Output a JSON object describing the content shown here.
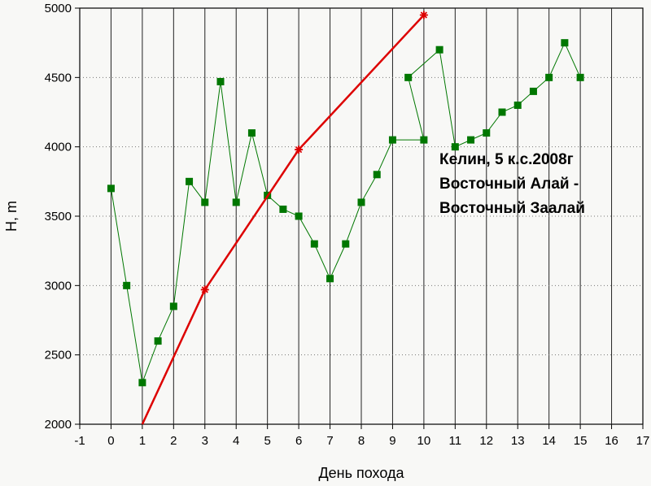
{
  "chart_data": {
    "type": "line",
    "xlabel": "День похода",
    "ylabel": "H, m",
    "xlim": [
      -1,
      17
    ],
    "ylim": [
      2000,
      5000
    ],
    "x_ticks": [
      -1,
      0,
      1,
      2,
      3,
      4,
      5,
      6,
      7,
      8,
      9,
      10,
      11,
      12,
      13,
      14,
      15,
      16,
      17
    ],
    "y_ticks": [
      2000,
      2500,
      3000,
      3500,
      4000,
      4500,
      5000
    ],
    "grid": {
      "vertical": "solid lines at each integer day",
      "horizontal": "dotted lines at each 500 m"
    },
    "annotation_lines": [
      "Келин, 5 к.с.2008г",
      "Восточный Алай -",
      "Восточный Заалай"
    ],
    "series": [
      {
        "color": "#007700",
        "marker": "square",
        "x": [
          0,
          0.5,
          1,
          1.5,
          2,
          2.5,
          3,
          3.5,
          4,
          4.5,
          5,
          5.5,
          6,
          6.5,
          7,
          7.5,
          8,
          8.5,
          9,
          10,
          9.5,
          10.5,
          11,
          11.5,
          12,
          12.5,
          13,
          13.5,
          14,
          14.5,
          15
        ],
        "y": [
          3700,
          3000,
          2300,
          2600,
          2850,
          3750,
          3600,
          4470,
          3600,
          4100,
          3650,
          3550,
          3500,
          3300,
          3050,
          3300,
          3600,
          3800,
          4050,
          4050,
          4500,
          4700,
          4000,
          4050,
          4100,
          4250,
          4300,
          4400,
          4500,
          4750,
          4500
        ]
      },
      {
        "color": "#dd0000",
        "marker": "star",
        "x": [
          1,
          3,
          6,
          10
        ],
        "y": [
          2000,
          2970,
          3980,
          4950
        ]
      }
    ]
  }
}
